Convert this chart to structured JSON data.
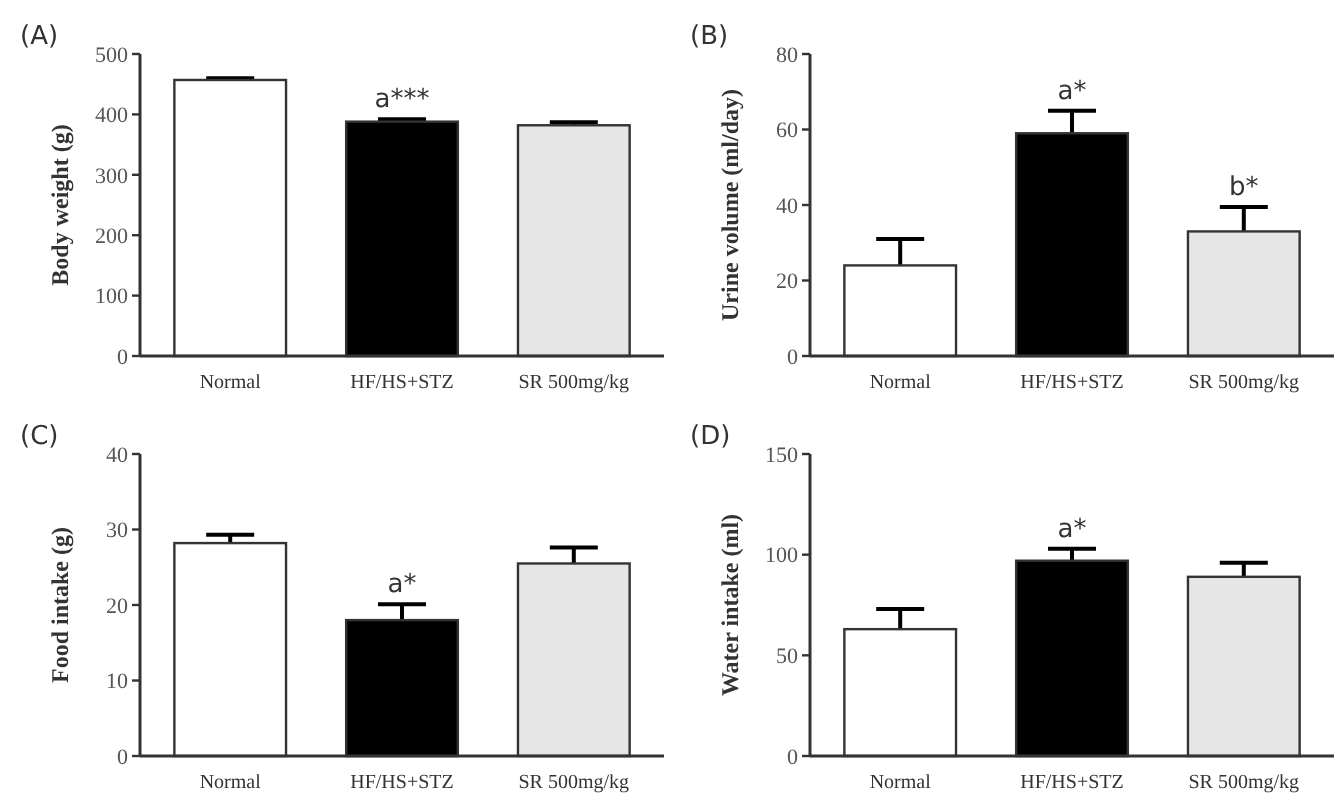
{
  "chart_data": [
    {
      "type": "bar",
      "title": "(A)",
      "ylabel": "Body weight (g)",
      "categories": [
        "Normal",
        "HF/HS+STZ",
        "SR 500mg/kg"
      ],
      "values": [
        457,
        388,
        382
      ],
      "errors": [
        [
          457,
          460
        ],
        [
          388,
          392
        ],
        [
          382,
          387
        ]
      ],
      "colors": [
        "#ffffff",
        "#000000",
        "#e6e6e6"
      ],
      "ylim": [
        0,
        500
      ],
      "yticks": [
        0,
        100,
        200,
        300,
        400,
        500
      ],
      "grid": false,
      "annotations": [
        {
          "text": "a***",
          "x": "HF/HS+STZ",
          "y": 392
        }
      ]
    },
    {
      "type": "bar",
      "title": "(B)",
      "ylabel": "Urine volume (ml/day)",
      "categories": [
        "Normal",
        "HF/HS+STZ",
        "SR 500mg/kg"
      ],
      "values": [
        24,
        59,
        33
      ],
      "errors": [
        [
          24,
          31
        ],
        [
          59,
          65
        ],
        [
          33,
          39.5
        ]
      ],
      "colors": [
        "#ffffff",
        "#000000",
        "#e6e6e6"
      ],
      "ylim": [
        0,
        80
      ],
      "yticks": [
        0,
        20,
        40,
        60,
        80
      ],
      "grid": false,
      "annotations": [
        {
          "text": "a*",
          "x": "HF/HS+STZ",
          "y": 65
        },
        {
          "text": "b*",
          "x": "SR 500mg/kg",
          "y": 39.5
        }
      ]
    },
    {
      "type": "bar",
      "title": "(C)",
      "ylabel": "Food intake (g)",
      "categories": [
        "Normal",
        "HF/HS+STZ",
        "SR 500mg/kg"
      ],
      "values": [
        28.2,
        18,
        25.5
      ],
      "errors": [
        [
          28.2,
          29.3
        ],
        [
          18,
          20.1
        ],
        [
          25.5,
          27.6
        ]
      ],
      "colors": [
        "#ffffff",
        "#000000",
        "#e6e6e6"
      ],
      "ylim": [
        0,
        40
      ],
      "yticks": [
        0,
        10,
        20,
        30,
        40
      ],
      "grid": false,
      "annotations": [
        {
          "text": "a*",
          "x": "HF/HS+STZ",
          "y": 20.1
        }
      ]
    },
    {
      "type": "bar",
      "title": "(D)",
      "ylabel": "Water intake (ml)",
      "categories": [
        "Normal",
        "HF/HS+STZ",
        "SR 500mg/kg"
      ],
      "values": [
        63,
        97,
        89
      ],
      "errors": [
        [
          63,
          73
        ],
        [
          97,
          103
        ],
        [
          89,
          96
        ]
      ],
      "colors": [
        "#ffffff",
        "#000000",
        "#e6e6e6"
      ],
      "ylim": [
        0,
        150
      ],
      "yticks": [
        0,
        50,
        100,
        150
      ],
      "grid": false,
      "annotations": [
        {
          "text": "a*",
          "x": "HF/HS+STZ",
          "y": 103
        }
      ]
    }
  ]
}
